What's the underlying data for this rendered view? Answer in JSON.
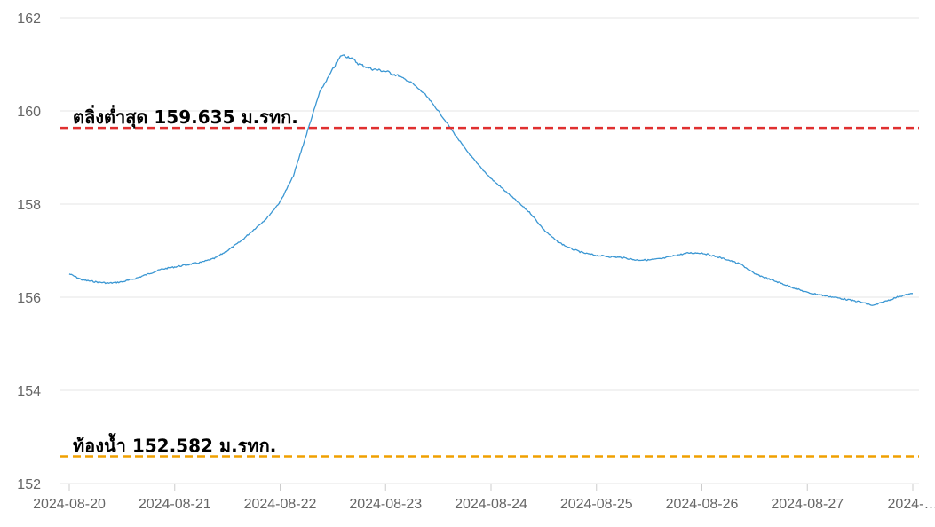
{
  "chart_data": {
    "type": "line",
    "title": "",
    "xlabel": "",
    "ylabel": "",
    "ylim": [
      152,
      162
    ],
    "yticks": [
      "152",
      "154",
      "156",
      "158",
      "160",
      "162"
    ],
    "x_ticks": [
      "2024-08-20",
      "2024-08-21",
      "2024-08-22",
      "2024-08-23",
      "2024-08-24",
      "2024-08-25",
      "2024-08-26",
      "2024-08-27",
      "2024-…"
    ],
    "grid": "horizontal",
    "series": [
      {
        "color": "#3b97d3",
        "points": [
          [
            "2024-08-20 00:00",
            156.5
          ],
          [
            "2024-08-20 03:00",
            156.37
          ],
          [
            "2024-08-20 06:00",
            156.33
          ],
          [
            "2024-08-20 09:00",
            156.3
          ],
          [
            "2024-08-20 12:00",
            156.33
          ],
          [
            "2024-08-20 15:00",
            156.4
          ],
          [
            "2024-08-20 18:00",
            156.5
          ],
          [
            "2024-08-20 21:00",
            156.6
          ],
          [
            "2024-08-21 00:00",
            156.65
          ],
          [
            "2024-08-21 03:00",
            156.7
          ],
          [
            "2024-08-21 06:00",
            156.75
          ],
          [
            "2024-08-21 09:00",
            156.83
          ],
          [
            "2024-08-21 12:00",
            157.0
          ],
          [
            "2024-08-21 15:00",
            157.2
          ],
          [
            "2024-08-21 18:00",
            157.45
          ],
          [
            "2024-08-21 21:00",
            157.7
          ],
          [
            "2024-08-22 00:00",
            158.05
          ],
          [
            "2024-08-22 03:00",
            158.6
          ],
          [
            "2024-08-22 06:00",
            159.5
          ],
          [
            "2024-08-22 09:00",
            160.4
          ],
          [
            "2024-08-22 12:00",
            160.9
          ],
          [
            "2024-08-22 14:00",
            161.2
          ],
          [
            "2024-08-22 16:00",
            161.15
          ],
          [
            "2024-08-22 18:00",
            161.0
          ],
          [
            "2024-08-22 21:00",
            160.9
          ],
          [
            "2024-08-23 00:00",
            160.85
          ],
          [
            "2024-08-23 03:00",
            160.75
          ],
          [
            "2024-08-23 06:00",
            160.6
          ],
          [
            "2024-08-23 09:00",
            160.35
          ],
          [
            "2024-08-23 12:00",
            160.0
          ],
          [
            "2024-08-23 15:00",
            159.6
          ],
          [
            "2024-08-23 18:00",
            159.2
          ],
          [
            "2024-08-23 21:00",
            158.85
          ],
          [
            "2024-08-24 00:00",
            158.55
          ],
          [
            "2024-08-24 03:00",
            158.3
          ],
          [
            "2024-08-24 06:00",
            158.05
          ],
          [
            "2024-08-24 09:00",
            157.8
          ],
          [
            "2024-08-24 12:00",
            157.45
          ],
          [
            "2024-08-24 15:00",
            157.2
          ],
          [
            "2024-08-24 18:00",
            157.05
          ],
          [
            "2024-08-24 21:00",
            156.95
          ],
          [
            "2024-08-25 00:00",
            156.9
          ],
          [
            "2024-08-25 03:00",
            156.87
          ],
          [
            "2024-08-25 06:00",
            156.85
          ],
          [
            "2024-08-25 09:00",
            156.8
          ],
          [
            "2024-08-25 12:00",
            156.8
          ],
          [
            "2024-08-25 15:00",
            156.83
          ],
          [
            "2024-08-25 18:00",
            156.9
          ],
          [
            "2024-08-25 21:00",
            156.95
          ],
          [
            "2024-08-26 00:00",
            156.95
          ],
          [
            "2024-08-26 03:00",
            156.88
          ],
          [
            "2024-08-26 06:00",
            156.8
          ],
          [
            "2024-08-26 09:00",
            156.7
          ],
          [
            "2024-08-26 12:00",
            156.5
          ],
          [
            "2024-08-26 15:00",
            156.4
          ],
          [
            "2024-08-26 18:00",
            156.3
          ],
          [
            "2024-08-26 21:00",
            156.2
          ],
          [
            "2024-08-27 00:00",
            156.1
          ],
          [
            "2024-08-27 03:00",
            156.05
          ],
          [
            "2024-08-27 06:00",
            156.0
          ],
          [
            "2024-08-27 09:00",
            155.95
          ],
          [
            "2024-08-27 12:00",
            155.9
          ],
          [
            "2024-08-27 15:00",
            155.82
          ],
          [
            "2024-08-27 18:00",
            155.92
          ],
          [
            "2024-08-27 21:00",
            156.02
          ],
          [
            "2024-08-28 00:00",
            156.08
          ]
        ]
      }
    ],
    "reference_lines": [
      {
        "label": "ตลิ่งต่ำสุด 159.635 ม.รทก.",
        "value": 159.635,
        "color": "#e03030"
      },
      {
        "label": "ท้องน้ำ 152.582 ม.รทก.",
        "value": 152.582,
        "color": "#f0a000"
      }
    ]
  }
}
